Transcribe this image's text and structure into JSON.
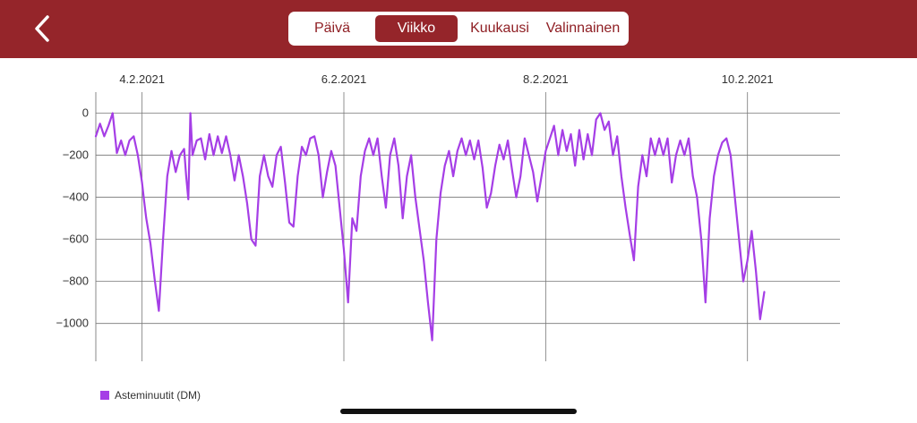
{
  "header": {
    "back_icon": "chevron-left-icon",
    "tabs": [
      "Päivä",
      "Viikko",
      "Kuukausi",
      "Valinnainen"
    ],
    "active_tab": "Viikko"
  },
  "colors": {
    "header_bg": "#95252a",
    "series": "#a53ee6"
  },
  "chart_data": {
    "type": "line",
    "grid": true,
    "xlim": [
      "2021-02-03T13:00",
      "2021-02-10T22:00"
    ],
    "ylim": [
      -1180,
      100
    ],
    "x_ticks": [
      {
        "label": "4.2.2021",
        "date": "2021-02-04T00:00"
      },
      {
        "label": "6.2.2021",
        "date": "2021-02-06T00:00"
      },
      {
        "label": "8.2.2021",
        "date": "2021-02-08T00:00"
      },
      {
        "label": "10.2.2021",
        "date": "2021-02-10T00:00"
      }
    ],
    "y_ticks": [
      0,
      -200,
      -400,
      -600,
      -800,
      -1000
    ],
    "legend_position": "bottom-left",
    "series": [
      {
        "name": "Asteminuutit (DM)",
        "points": [
          [
            "2021-02-03T13:00",
            -110
          ],
          [
            "2021-02-03T14:00",
            -50
          ],
          [
            "2021-02-03T15:00",
            -110
          ],
          [
            "2021-02-03T16:00",
            -60
          ],
          [
            "2021-02-03T17:00",
            0
          ],
          [
            "2021-02-03T18:00",
            -190
          ],
          [
            "2021-02-03T19:00",
            -130
          ],
          [
            "2021-02-03T20:00",
            -200
          ],
          [
            "2021-02-03T21:00",
            -130
          ],
          [
            "2021-02-03T22:00",
            -110
          ],
          [
            "2021-02-03T23:00",
            -200
          ],
          [
            "2021-02-04T00:00",
            -330
          ],
          [
            "2021-02-04T00:30",
            -420
          ],
          [
            "2021-02-04T01:00",
            -500
          ],
          [
            "2021-02-04T02:00",
            -620
          ],
          [
            "2021-02-04T03:00",
            -790
          ],
          [
            "2021-02-04T04:00",
            -940
          ],
          [
            "2021-02-04T05:00",
            -600
          ],
          [
            "2021-02-04T06:00",
            -300
          ],
          [
            "2021-02-04T07:00",
            -180
          ],
          [
            "2021-02-04T08:00",
            -280
          ],
          [
            "2021-02-04T09:00",
            -200
          ],
          [
            "2021-02-04T10:00",
            -170
          ],
          [
            "2021-02-04T10:30",
            -300
          ],
          [
            "2021-02-04T11:00",
            -410
          ],
          [
            "2021-02-04T11:30",
            0
          ],
          [
            "2021-02-04T12:00",
            -200
          ],
          [
            "2021-02-04T13:00",
            -130
          ],
          [
            "2021-02-04T14:00",
            -120
          ],
          [
            "2021-02-04T15:00",
            -220
          ],
          [
            "2021-02-04T16:00",
            -100
          ],
          [
            "2021-02-04T17:00",
            -200
          ],
          [
            "2021-02-04T18:00",
            -110
          ],
          [
            "2021-02-04T19:00",
            -190
          ],
          [
            "2021-02-04T20:00",
            -110
          ],
          [
            "2021-02-04T21:00",
            -200
          ],
          [
            "2021-02-04T22:00",
            -320
          ],
          [
            "2021-02-04T23:00",
            -200
          ],
          [
            "2021-02-05T00:00",
            -300
          ],
          [
            "2021-02-05T01:00",
            -430
          ],
          [
            "2021-02-05T02:00",
            -600
          ],
          [
            "2021-02-05T03:00",
            -630
          ],
          [
            "2021-02-05T04:00",
            -300
          ],
          [
            "2021-02-05T05:00",
            -200
          ],
          [
            "2021-02-05T06:00",
            -300
          ],
          [
            "2021-02-05T07:00",
            -350
          ],
          [
            "2021-02-05T08:00",
            -200
          ],
          [
            "2021-02-05T09:00",
            -160
          ],
          [
            "2021-02-05T10:00",
            -330
          ],
          [
            "2021-02-05T11:00",
            -520
          ],
          [
            "2021-02-05T12:00",
            -540
          ],
          [
            "2021-02-05T13:00",
            -300
          ],
          [
            "2021-02-05T14:00",
            -160
          ],
          [
            "2021-02-05T15:00",
            -200
          ],
          [
            "2021-02-05T16:00",
            -120
          ],
          [
            "2021-02-05T17:00",
            -110
          ],
          [
            "2021-02-05T18:00",
            -200
          ],
          [
            "2021-02-05T19:00",
            -400
          ],
          [
            "2021-02-05T20:00",
            -280
          ],
          [
            "2021-02-05T21:00",
            -180
          ],
          [
            "2021-02-05T22:00",
            -250
          ],
          [
            "2021-02-05T23:00",
            -450
          ],
          [
            "2021-02-06T00:00",
            -650
          ],
          [
            "2021-02-06T01:00",
            -900
          ],
          [
            "2021-02-06T02:00",
            -500
          ],
          [
            "2021-02-06T03:00",
            -560
          ],
          [
            "2021-02-06T04:00",
            -300
          ],
          [
            "2021-02-06T05:00",
            -180
          ],
          [
            "2021-02-06T06:00",
            -120
          ],
          [
            "2021-02-06T07:00",
            -200
          ],
          [
            "2021-02-06T08:00",
            -120
          ],
          [
            "2021-02-06T09:00",
            -300
          ],
          [
            "2021-02-06T10:00",
            -450
          ],
          [
            "2021-02-06T11:00",
            -200
          ],
          [
            "2021-02-06T12:00",
            -120
          ],
          [
            "2021-02-06T13:00",
            -250
          ],
          [
            "2021-02-06T14:00",
            -500
          ],
          [
            "2021-02-06T15:00",
            -300
          ],
          [
            "2021-02-06T16:00",
            -200
          ],
          [
            "2021-02-06T17:00",
            -400
          ],
          [
            "2021-02-06T18:00",
            -550
          ],
          [
            "2021-02-06T19:00",
            -700
          ],
          [
            "2021-02-06T20:00",
            -900
          ],
          [
            "2021-02-06T21:00",
            -1080
          ],
          [
            "2021-02-06T22:00",
            -600
          ],
          [
            "2021-02-06T23:00",
            -380
          ],
          [
            "2021-02-07T00:00",
            -250
          ],
          [
            "2021-02-07T01:00",
            -180
          ],
          [
            "2021-02-07T02:00",
            -300
          ],
          [
            "2021-02-07T03:00",
            -180
          ],
          [
            "2021-02-07T04:00",
            -120
          ],
          [
            "2021-02-07T05:00",
            -200
          ],
          [
            "2021-02-07T06:00",
            -130
          ],
          [
            "2021-02-07T07:00",
            -220
          ],
          [
            "2021-02-07T08:00",
            -130
          ],
          [
            "2021-02-07T09:00",
            -260
          ],
          [
            "2021-02-07T10:00",
            -450
          ],
          [
            "2021-02-07T11:00",
            -380
          ],
          [
            "2021-02-07T12:00",
            -250
          ],
          [
            "2021-02-07T13:00",
            -150
          ],
          [
            "2021-02-07T14:00",
            -220
          ],
          [
            "2021-02-07T15:00",
            -130
          ],
          [
            "2021-02-07T16:00",
            -270
          ],
          [
            "2021-02-07T17:00",
            -400
          ],
          [
            "2021-02-07T18:00",
            -300
          ],
          [
            "2021-02-07T19:00",
            -120
          ],
          [
            "2021-02-07T20:00",
            -200
          ],
          [
            "2021-02-07T21:00",
            -280
          ],
          [
            "2021-02-07T22:00",
            -420
          ],
          [
            "2021-02-07T23:00",
            -300
          ],
          [
            "2021-02-08T00:00",
            -180
          ],
          [
            "2021-02-08T01:00",
            -120
          ],
          [
            "2021-02-08T02:00",
            -60
          ],
          [
            "2021-02-08T03:00",
            -200
          ],
          [
            "2021-02-08T04:00",
            -80
          ],
          [
            "2021-02-08T05:00",
            -180
          ],
          [
            "2021-02-08T06:00",
            -100
          ],
          [
            "2021-02-08T07:00",
            -250
          ],
          [
            "2021-02-08T08:00",
            -80
          ],
          [
            "2021-02-08T09:00",
            -220
          ],
          [
            "2021-02-08T10:00",
            -100
          ],
          [
            "2021-02-08T11:00",
            -200
          ],
          [
            "2021-02-08T12:00",
            -30
          ],
          [
            "2021-02-08T13:00",
            0
          ],
          [
            "2021-02-08T14:00",
            -80
          ],
          [
            "2021-02-08T15:00",
            -40
          ],
          [
            "2021-02-08T16:00",
            -200
          ],
          [
            "2021-02-08T17:00",
            -110
          ],
          [
            "2021-02-08T18:00",
            -300
          ],
          [
            "2021-02-08T19:00",
            -450
          ],
          [
            "2021-02-08T20:00",
            -580
          ],
          [
            "2021-02-08T21:00",
            -700
          ],
          [
            "2021-02-08T22:00",
            -350
          ],
          [
            "2021-02-08T23:00",
            -200
          ],
          [
            "2021-02-09T00:00",
            -300
          ],
          [
            "2021-02-09T01:00",
            -120
          ],
          [
            "2021-02-09T02:00",
            -200
          ],
          [
            "2021-02-09T03:00",
            -120
          ],
          [
            "2021-02-09T04:00",
            -200
          ],
          [
            "2021-02-09T05:00",
            -120
          ],
          [
            "2021-02-09T06:00",
            -330
          ],
          [
            "2021-02-09T07:00",
            -200
          ],
          [
            "2021-02-09T08:00",
            -130
          ],
          [
            "2021-02-09T09:00",
            -200
          ],
          [
            "2021-02-09T10:00",
            -120
          ],
          [
            "2021-02-09T11:00",
            -300
          ],
          [
            "2021-02-09T12:00",
            -400
          ],
          [
            "2021-02-09T13:00",
            -600
          ],
          [
            "2021-02-09T14:00",
            -900
          ],
          [
            "2021-02-09T15:00",
            -500
          ],
          [
            "2021-02-09T16:00",
            -300
          ],
          [
            "2021-02-09T17:00",
            -200
          ],
          [
            "2021-02-09T18:00",
            -140
          ],
          [
            "2021-02-09T19:00",
            -120
          ],
          [
            "2021-02-09T20:00",
            -200
          ],
          [
            "2021-02-09T21:00",
            -400
          ],
          [
            "2021-02-09T22:00",
            -600
          ],
          [
            "2021-02-09T23:00",
            -800
          ],
          [
            "2021-02-10T00:00",
            -700
          ],
          [
            "2021-02-10T01:00",
            -560
          ],
          [
            "2021-02-10T02:00",
            -750
          ],
          [
            "2021-02-10T03:00",
            -980
          ],
          [
            "2021-02-10T04:00",
            -850
          ]
        ]
      }
    ]
  }
}
